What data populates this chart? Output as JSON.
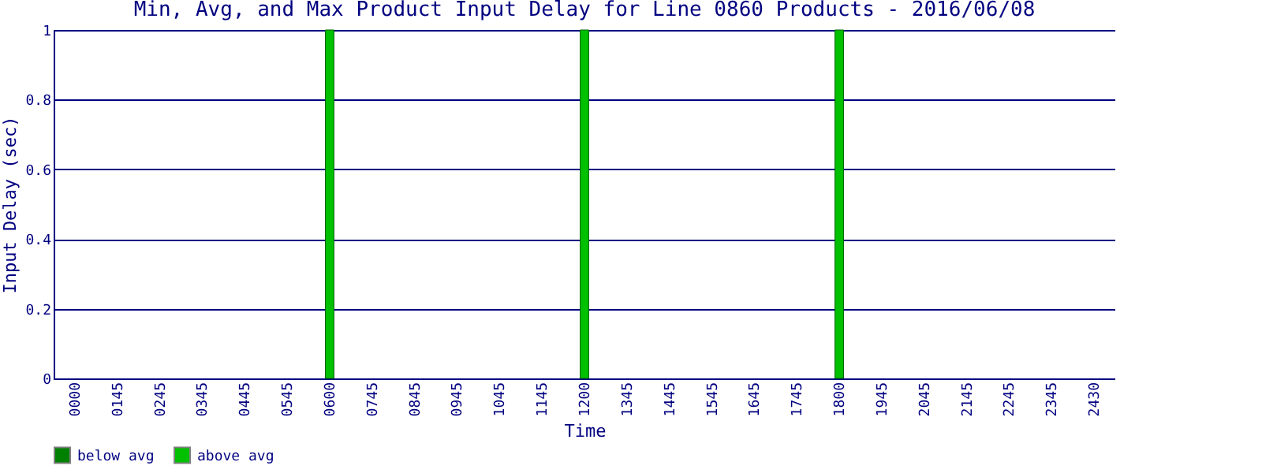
{
  "chart_data": {
    "type": "bar",
    "title": "Min, Avg, and Max Product Input Delay for Line 0860 Products - 2016/06/08",
    "xlabel": "Time",
    "ylabel": "Input Delay (sec)",
    "categories": [
      "0000",
      "0145",
      "0245",
      "0345",
      "0445",
      "0545",
      "0600",
      "0745",
      "0845",
      "0945",
      "1045",
      "1145",
      "1200",
      "1345",
      "1445",
      "1545",
      "1645",
      "1745",
      "1800",
      "1945",
      "2045",
      "2145",
      "2245",
      "2345",
      "2430"
    ],
    "series": [
      {
        "name": "below avg",
        "color": "#008000",
        "values": [
          null,
          null,
          null,
          null,
          null,
          null,
          null,
          null,
          null,
          null,
          null,
          null,
          null,
          null,
          null,
          null,
          null,
          null,
          null,
          null,
          null,
          null,
          null,
          null,
          null
        ]
      },
      {
        "name": "above avg",
        "color": "#00c000",
        "values": [
          null,
          null,
          null,
          null,
          null,
          null,
          1,
          null,
          null,
          null,
          null,
          null,
          1,
          null,
          null,
          null,
          null,
          null,
          1,
          null,
          null,
          null,
          null,
          null,
          null
        ]
      }
    ],
    "ylim": [
      0,
      1
    ],
    "yticks": [
      0,
      0.2,
      0.4,
      0.6,
      0.8,
      1
    ],
    "grid": "y",
    "legend": "bottom"
  }
}
